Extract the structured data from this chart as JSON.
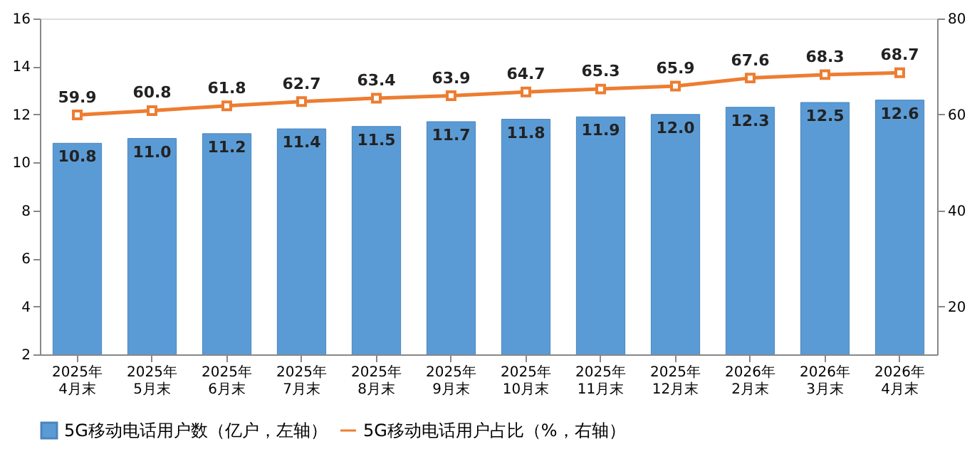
{
  "chart_data": {
    "type": "bar",
    "categories": [
      "2025年\n4月末",
      "2025年\n5月末",
      "2025年\n6月末",
      "2025年\n7月末",
      "2025年\n8月末",
      "2025年\n9月末",
      "2025年\n10月末",
      "2025年\n11月末",
      "2025年\n12月末",
      "2026年\n2月末",
      "2026年\n3月末",
      "2026年\n4月末"
    ],
    "series": [
      {
        "name": "5G移动电话用户数（亿户，左轴）",
        "color": "#5b9bd5",
        "values": [
          10.8,
          11.0,
          11.2,
          11.4,
          11.5,
          11.7,
          11.8,
          11.9,
          12.0,
          12.3,
          12.5,
          12.6
        ],
        "value_labels": [
          "10.8",
          "11.0",
          "11.2",
          "11.4",
          "11.5",
          "11.7",
          "11.8",
          "11.9",
          "12.0",
          "12.3",
          "12.5",
          "12.6"
        ]
      },
      {
        "name": "5G移动电话用户占比（%，右轴）",
        "type": "line",
        "axis": "y2",
        "color": "#ed7d31",
        "marker": "square",
        "values": [
          59.9,
          60.8,
          61.8,
          62.7,
          63.4,
          63.9,
          64.7,
          65.3,
          65.9,
          67.6,
          68.3,
          68.7
        ]
      }
    ],
    "ylim": [
      2,
      16
    ],
    "yticks": [
      2,
      4,
      6,
      8,
      10,
      12,
      14,
      16
    ],
    "y2lim": [
      10,
      80
    ],
    "y2ticks": [
      20,
      40,
      60,
      80
    ],
    "data_labels": true,
    "grid": false,
    "legend": "bottom"
  }
}
